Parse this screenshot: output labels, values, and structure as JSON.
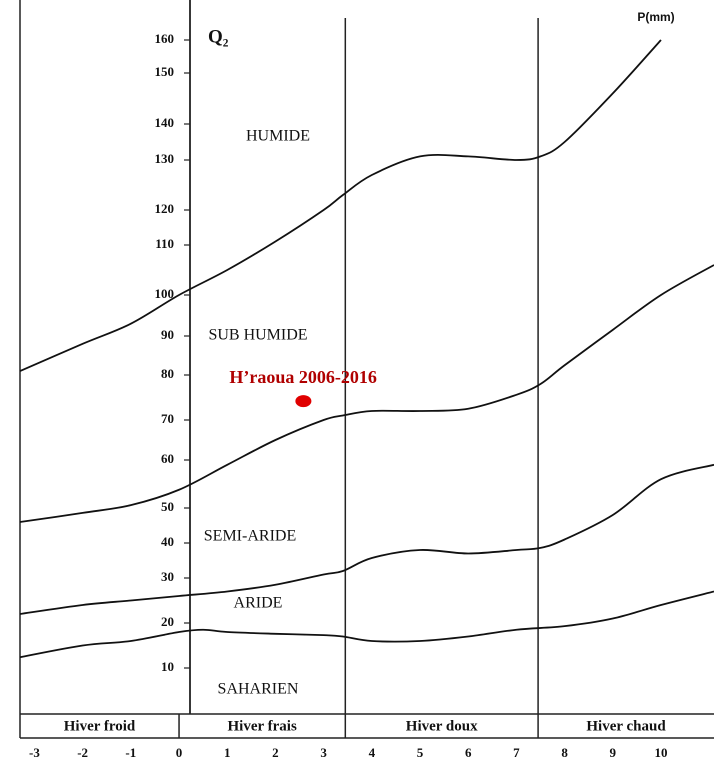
{
  "chart_data": {
    "type": "line",
    "y_label": "Q₂",
    "x_label": "P(mm)",
    "xlim": [
      -3.3,
      11.1
    ],
    "xticks": [
      -3,
      -2,
      -1,
      0,
      1,
      2,
      3,
      4,
      5,
      6,
      7,
      8,
      9,
      10
    ],
    "ylim": [
      0,
      170
    ],
    "yticks": [
      10,
      20,
      30,
      40,
      50,
      60,
      70,
      80,
      90,
      100,
      110,
      120,
      130,
      140,
      150,
      160
    ],
    "zone_labels": [
      "HUMIDE",
      "SUB HUMIDE",
      "SEMI-ARIDE",
      "ARIDE",
      "SAHARIEN"
    ],
    "winter_bands": [
      "Hiver froid",
      "Hiver frais",
      "Hiver doux",
      "Hiver chaud"
    ],
    "band_boundaries": [
      0,
      3.45,
      7.45
    ],
    "series": [
      {
        "color": "#111111",
        "x": [
          -3.3,
          -2,
          -1,
          0,
          1,
          2,
          3,
          3.4,
          4,
          5,
          6,
          7,
          7.5,
          8,
          9,
          10
        ],
        "values": [
          81,
          88,
          93,
          100,
          105,
          111,
          120,
          123,
          127,
          131,
          131,
          130,
          131,
          135,
          146,
          160
        ]
      },
      {
        "color": "#111111",
        "x": [
          -3.3,
          -2,
          -1,
          0,
          1,
          2,
          3,
          3.4,
          4,
          5,
          6,
          7,
          7.5,
          8,
          9,
          10,
          11.1
        ],
        "values": [
          46,
          48.6,
          50.6,
          53.8,
          59,
          65,
          70,
          71,
          72,
          72,
          72.5,
          75.6,
          78,
          82.5,
          91.5,
          100,
          106
        ]
      },
      {
        "color": "#111111",
        "x": [
          -3.3,
          -2,
          -1,
          0,
          1,
          2,
          3,
          3.4,
          4,
          5,
          6,
          7,
          7.5,
          8,
          9,
          10,
          11.1
        ],
        "values": [
          22,
          24,
          25,
          26,
          27,
          28.5,
          31,
          32,
          35.7,
          38,
          37,
          38,
          38.6,
          41,
          48,
          56,
          59
        ]
      },
      {
        "color": "#111111",
        "x": [
          -3.3,
          -2,
          -1,
          0,
          0.5,
          1,
          2,
          3,
          3.4,
          4,
          5,
          6,
          7,
          8,
          9,
          10,
          11.1
        ],
        "values": [
          12.4,
          15,
          16,
          18,
          18.5,
          18,
          17.6,
          17.3,
          17,
          16,
          16,
          17,
          18.5,
          19.3,
          21,
          24,
          27
        ]
      }
    ],
    "points": [
      {
        "label": "H’raoua  2006-2016",
        "x": 2.58,
        "y": 74.2,
        "color": "#e00000"
      }
    ]
  }
}
